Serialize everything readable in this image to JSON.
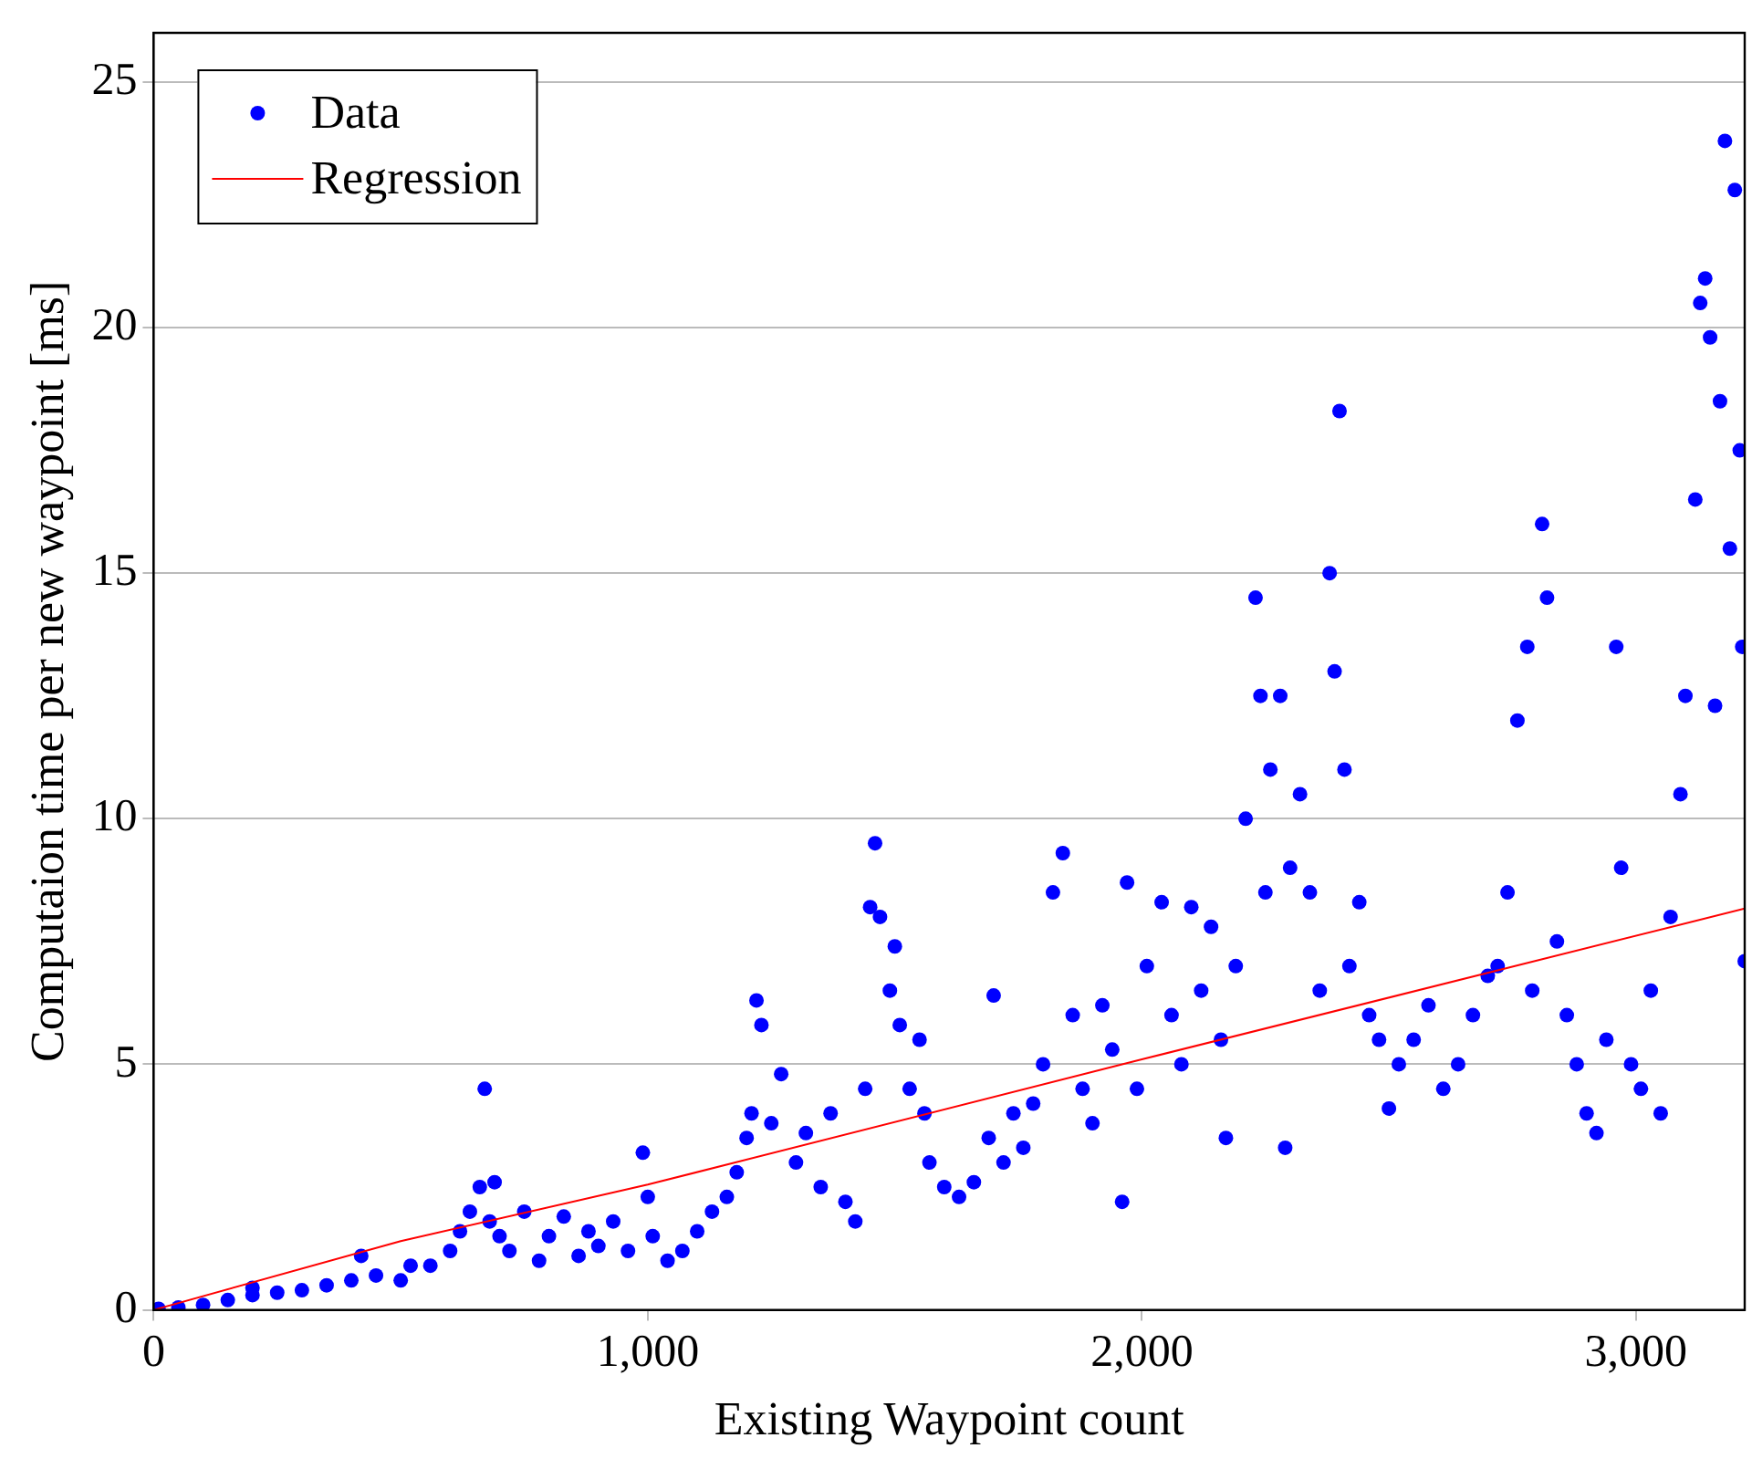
{
  "chart_data": {
    "type": "scatter",
    "xlabel": "Existing Waypoint count",
    "ylabel": "Computaion time per new waypoint [ms]",
    "xlim": [
      0,
      3220
    ],
    "ylim": [
      0,
      26
    ],
    "xticks": [
      0,
      {
        "value": 1000,
        "label": "1,000"
      },
      {
        "value": 2000,
        "label": "2,000"
      },
      {
        "value": 3000,
        "label": "3,000"
      }
    ],
    "yticks": [
      0,
      5,
      10,
      15,
      20,
      25
    ],
    "grid": "y",
    "legend": "top left",
    "series": [
      {
        "name": "Data",
        "type": "scatter",
        "color": "#0000ff",
        "marker": "circle",
        "x": [
          10,
          50,
          100,
          150,
          200,
          200,
          250,
          300,
          350,
          400,
          420,
          450,
          500,
          520,
          560,
          600,
          620,
          640,
          660,
          670,
          680,
          690,
          700,
          720,
          750,
          780,
          800,
          830,
          860,
          880,
          900,
          930,
          960,
          990,
          1000,
          1010,
          1040,
          1070,
          1100,
          1130,
          1160,
          1180,
          1200,
          1210,
          1220,
          1230,
          1250,
          1270,
          1300,
          1320,
          1350,
          1370,
          1400,
          1420,
          1440,
          1450,
          1460,
          1470,
          1490,
          1500,
          1510,
          1530,
          1550,
          1560,
          1570,
          1600,
          1630,
          1660,
          1690,
          1700,
          1720,
          1740,
          1760,
          1780,
          1800,
          1820,
          1840,
          1860,
          1880,
          1900,
          1920,
          1940,
          1960,
          1970,
          1990,
          2010,
          2040,
          2060,
          2080,
          2100,
          2120,
          2140,
          2160,
          2170,
          2190,
          2210,
          2230,
          2240,
          2250,
          2260,
          2280,
          2290,
          2300,
          2320,
          2340,
          2360,
          2380,
          2390,
          2400,
          2410,
          2420,
          2440,
          2460,
          2480,
          2500,
          2520,
          2550,
          2580,
          2610,
          2640,
          2670,
          2700,
          2720,
          2740,
          2760,
          2780,
          2790,
          2810,
          2820,
          2840,
          2860,
          2880,
          2900,
          2920,
          2940,
          2960,
          2970,
          2990,
          3010,
          3030,
          3050,
          3070,
          3090,
          3100,
          3120,
          3130,
          3140,
          3150,
          3160,
          3170,
          3180,
          3190,
          3200,
          3210,
          3215,
          3220
        ],
        "values": [
          0.02,
          0.05,
          0.1,
          0.2,
          0.3,
          0.45,
          0.35,
          0.4,
          0.5,
          0.6,
          1.1,
          0.7,
          0.6,
          0.9,
          0.9,
          1.2,
          1.6,
          2.0,
          2.5,
          4.5,
          1.8,
          2.6,
          1.5,
          1.2,
          2.0,
          1.0,
          1.5,
          1.9,
          1.1,
          1.6,
          1.3,
          1.8,
          1.2,
          3.2,
          2.3,
          1.5,
          1.0,
          1.2,
          1.6,
          2.0,
          2.3,
          2.8,
          3.5,
          4.0,
          6.3,
          5.8,
          3.8,
          4.8,
          3.0,
          3.6,
          2.5,
          4.0,
          2.2,
          1.8,
          4.5,
          8.2,
          9.5,
          8.0,
          6.5,
          7.4,
          5.8,
          4.5,
          5.5,
          4.0,
          3.0,
          2.5,
          2.3,
          2.6,
          3.5,
          6.4,
          3.0,
          4.0,
          3.3,
          4.2,
          5.0,
          8.5,
          9.3,
          6.0,
          4.5,
          3.8,
          6.2,
          5.3,
          2.2,
          8.7,
          4.5,
          7.0,
          8.3,
          6.0,
          5.0,
          8.2,
          6.5,
          7.8,
          5.5,
          3.5,
          7.0,
          10.0,
          14.5,
          12.5,
          8.5,
          11.0,
          12.5,
          3.3,
          9.0,
          10.5,
          8.5,
          6.5,
          15.0,
          13.0,
          18.3,
          11.0,
          7.0,
          8.3,
          6.0,
          5.5,
          4.1,
          5.0,
          5.5,
          6.2,
          4.5,
          5.0,
          6.0,
          6.8,
          7.0,
          8.5,
          12.0,
          13.5,
          6.5,
          16.0,
          14.5,
          7.5,
          6.0,
          5.0,
          4.0,
          3.6,
          5.5,
          13.5,
          9.0,
          5.0,
          4.5,
          6.5,
          4.0,
          8.0,
          10.5,
          12.5,
          16.5,
          20.5,
          21.0,
          19.8,
          12.3,
          18.5,
          23.8,
          15.5,
          22.8,
          17.5,
          13.5,
          7.1
        ]
      },
      {
        "name": "Regression",
        "type": "line",
        "color": "#ff0000",
        "marker": "none",
        "line_style": "solid",
        "x": [
          0,
          500,
          1000,
          2000,
          3220
        ],
        "values": [
          0,
          1.4,
          2.55,
          5.1,
          8.17
        ]
      }
    ]
  }
}
